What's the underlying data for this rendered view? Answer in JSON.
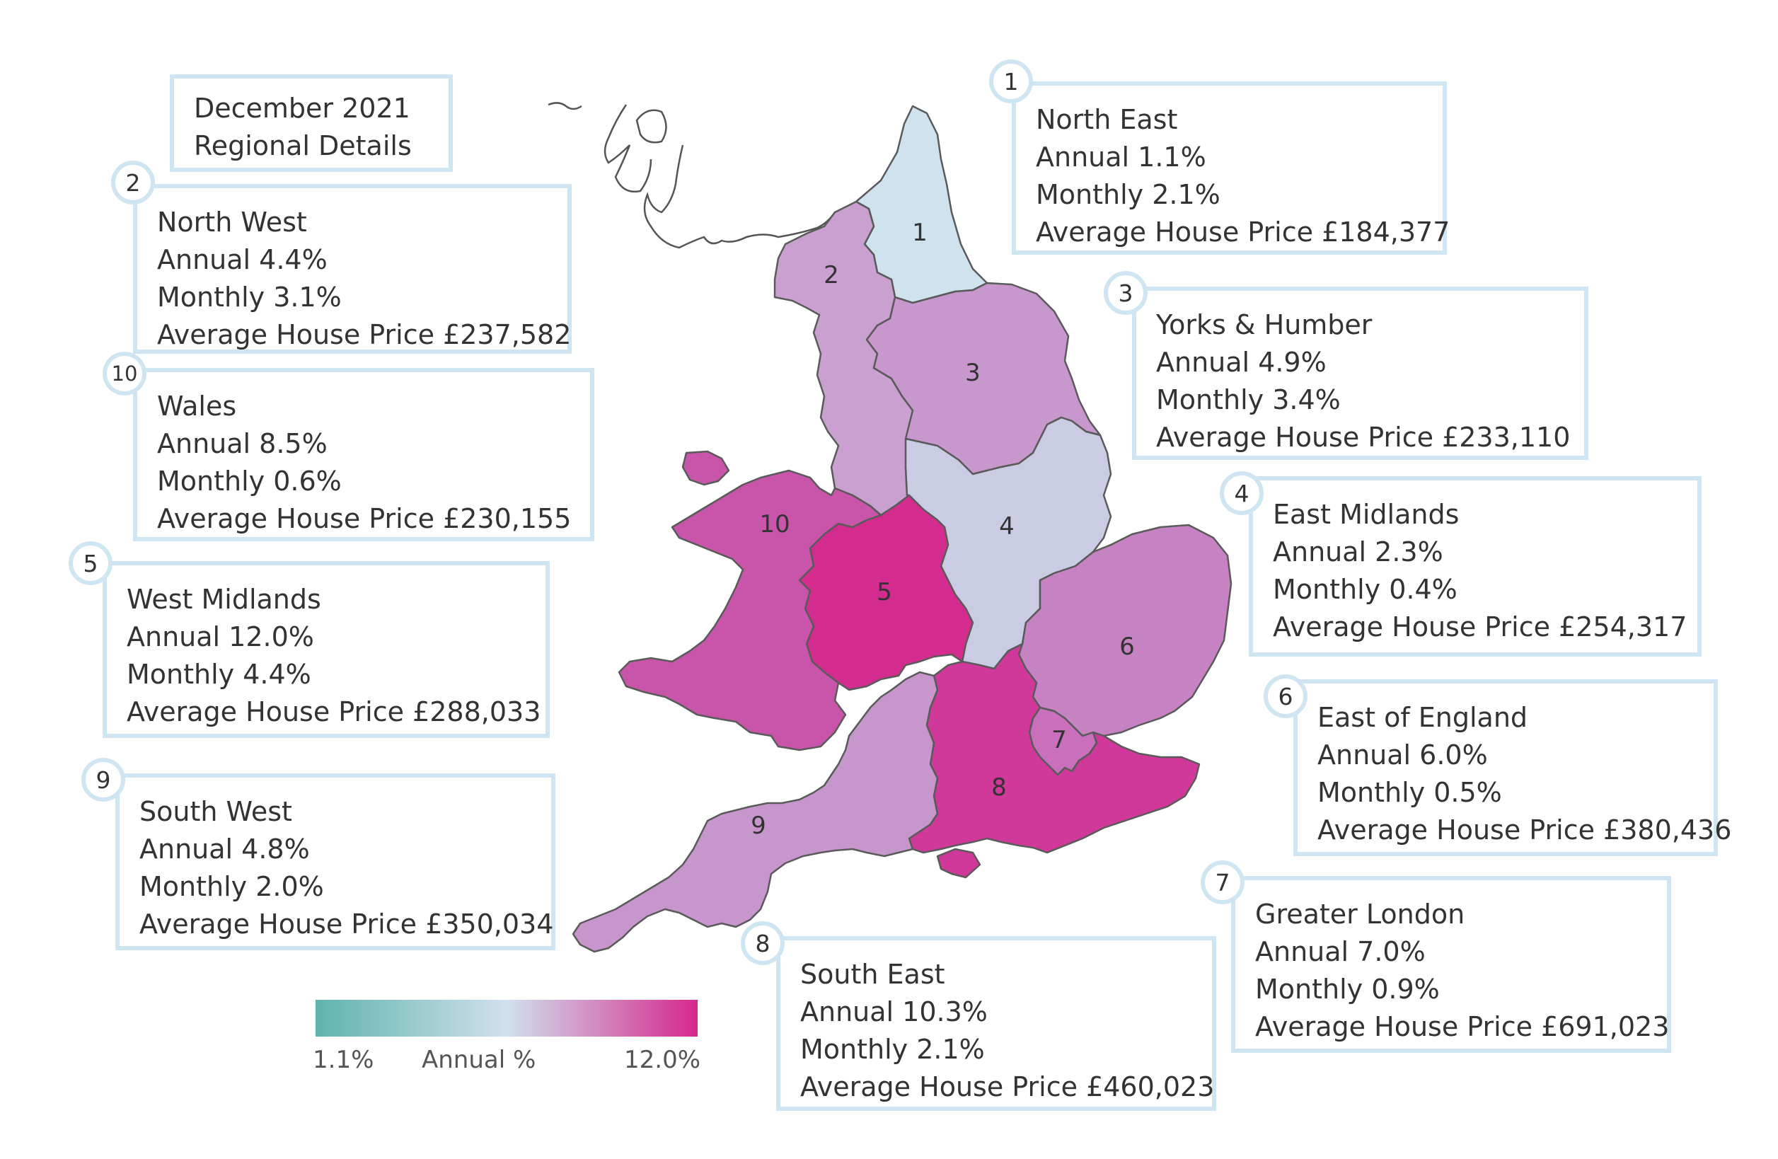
{
  "header": {
    "line1": "December 2021",
    "line2": "Regional Details"
  },
  "colors": {
    "low": "#5fb3ad",
    "mid": "#d0e1ee",
    "high": "#d6288c",
    "box_border": "#cfe5f1"
  },
  "legend": {
    "min_label": "1.1%",
    "title": "Annual %",
    "max_label": "12.0%"
  },
  "chart_data": {
    "type": "choropleth",
    "title": "December 2021 Regional Details",
    "value_label": "Annual %",
    "range": [
      1.1,
      12.0
    ],
    "regions": [
      {
        "id": "1",
        "name": "North East",
        "annual": "Annual 1.1%",
        "monthly": "Monthly 2.1%",
        "price": "Average House Price £184,377",
        "annual_value": 1.1,
        "fill": "#cfe3ee"
      },
      {
        "id": "2",
        "name": "North West",
        "annual": "Annual 4.4%",
        "monthly": "Monthly 3.1%",
        "price": "Average House Price £237,582",
        "annual_value": 4.4,
        "fill": "#c9a0cf"
      },
      {
        "id": "3",
        "name": "Yorks & Humber",
        "annual": "Annual 4.9%",
        "monthly": "Monthly 3.4%",
        "price": "Average House Price £233,110",
        "annual_value": 4.9,
        "fill": "#c797cd"
      },
      {
        "id": "4",
        "name": "East Midlands",
        "annual": "Annual 2.3%",
        "monthly": "Monthly 0.4%",
        "price": "Average House Price £254,317",
        "annual_value": 2.3,
        "fill": "#c9cce3"
      },
      {
        "id": "5",
        "name": "West Midlands",
        "annual": "Annual 12.0%",
        "monthly": "Monthly 4.4%",
        "price": "Average House Price £288,033",
        "annual_value": 12.0,
        "fill": "#d42b8e"
      },
      {
        "id": "6",
        "name": "East of England",
        "annual": "Annual 6.0%",
        "monthly": "Monthly 0.5%",
        "price": "Average House Price £380,436",
        "annual_value": 6.0,
        "fill": "#c682c2"
      },
      {
        "id": "7",
        "name": "Greater London",
        "annual": "Annual 7.0%",
        "monthly": "Monthly 0.9%",
        "price": "Average House Price £691,023",
        "annual_value": 7.0,
        "fill": "#c96fbb"
      },
      {
        "id": "8",
        "name": "South East",
        "annual": "Annual 10.3%",
        "monthly": "Monthly 2.1%",
        "price": "Average House Price £460,023",
        "annual_value": 10.3,
        "fill": "#d0399a"
      },
      {
        "id": "9",
        "name": "South West",
        "annual": "Annual 4.8%",
        "monthly": "Monthly 2.0%",
        "price": "Average House Price £350,034",
        "annual_value": 4.8,
        "fill": "#c796cc"
      },
      {
        "id": "10",
        "name": "Wales",
        "annual": "Annual 8.5%",
        "monthly": "Monthly 0.6%",
        "price": "Average House Price £230,155",
        "annual_value": 8.5,
        "fill": "#c855aa"
      }
    ]
  }
}
